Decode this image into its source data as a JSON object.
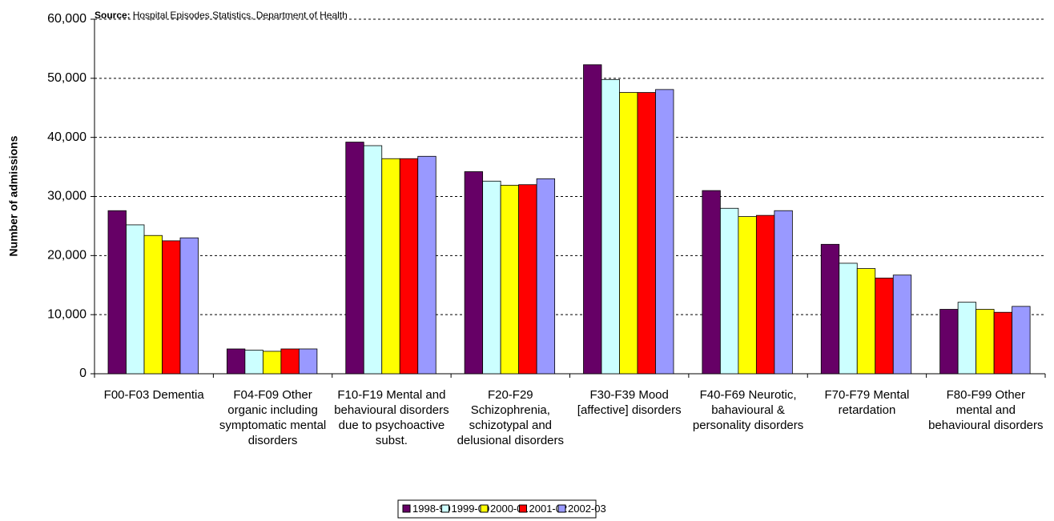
{
  "chart_data": {
    "type": "bar",
    "source_label": "Source:",
    "source": "Hospital Episodes Statistics, Department of Health",
    "y_label": "Number of admissions",
    "categories": [
      "F00-F03 Dementia",
      "F04-F09 Other organic including symptomatic mental disorders",
      "F10-F19 Mental and behavioural disorders due to psychoactive subst.",
      "F20-F29 Schizophrenia, schizotypal and delusional disorders",
      "F30-F39 Mood [affective] disorders",
      "F40-F69 Neurotic, bahavioural & personality disorders",
      "F70-F79 Mental retardation",
      "F80-F99 Other mental and behavioural disorders"
    ],
    "series": [
      {
        "name": "1998-99",
        "color": "#660066",
        "values": [
          27600,
          4200,
          39200,
          34200,
          52300,
          31000,
          21900,
          10900
        ]
      },
      {
        "name": "1999-00",
        "color": "#ccffff",
        "values": [
          25200,
          4000,
          38600,
          32600,
          49800,
          28000,
          18700,
          12100
        ]
      },
      {
        "name": "2000-01",
        "color": "#ffff00",
        "values": [
          23400,
          3800,
          36400,
          31900,
          47600,
          26600,
          17800,
          10900
        ]
      },
      {
        "name": "2001-02",
        "color": "#ff0000",
        "values": [
          22500,
          4200,
          36400,
          32000,
          47600,
          26800,
          16200,
          10400
        ]
      },
      {
        "name": "2002-03",
        "color": "#9999ff",
        "values": [
          23000,
          4200,
          36800,
          33000,
          48100,
          27600,
          16700,
          11400
        ]
      }
    ],
    "ylim": [
      0,
      60000
    ],
    "yticks": [
      0,
      {
        "value": 10000,
        "label": "10,000"
      },
      {
        "value": 20000,
        "label": "20,000"
      },
      {
        "value": 30000,
        "label": "30,000"
      },
      {
        "value": 40000,
        "label": "40,000"
      },
      {
        "value": 50000,
        "label": "50,000"
      },
      {
        "value": 60000,
        "label": "60,000"
      }
    ],
    "grid": true
  }
}
